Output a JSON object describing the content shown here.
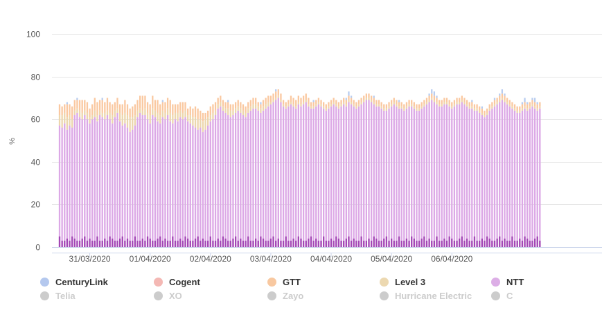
{
  "chart_data": {
    "type": "bar",
    "stacked": true,
    "ylabel": "%",
    "ylim": [
      0,
      100
    ],
    "yticks": [
      0,
      20,
      40,
      60,
      80,
      100
    ],
    "grid": true,
    "x_start": "2020-03-30T12:00",
    "x_step_hours": 1,
    "x_ticks": [
      {
        "label": "31/03/2020",
        "at": "2020-03-31T00:00"
      },
      {
        "label": "01/04/2020",
        "at": "2020-04-01T00:00"
      },
      {
        "label": "02/04/2020",
        "at": "2020-04-02T00:00"
      },
      {
        "label": "03/04/2020",
        "at": "2020-04-03T00:00"
      },
      {
        "label": "04/04/2020",
        "at": "2020-04-04T00:00"
      },
      {
        "label": "05/04/2020",
        "at": "2020-04-05T00:00"
      },
      {
        "label": "06/04/2020",
        "at": "2020-04-06T00:00"
      }
    ],
    "series": [
      {
        "name": "NTT",
        "color": "#dca8e6",
        "strong_color": "#a347b5",
        "values": [
          57,
          56,
          58,
          55,
          57,
          56,
          62,
          63,
          61,
          60,
          62,
          60,
          58,
          60,
          61,
          59,
          62,
          61,
          60,
          62,
          60,
          58,
          61,
          63,
          59,
          57,
          58,
          56,
          54,
          55,
          57,
          61,
          63,
          62,
          62,
          60,
          58,
          62,
          61,
          59,
          58,
          61,
          60,
          62,
          59,
          58,
          60,
          59,
          61,
          60,
          61,
          59,
          58,
          57,
          56,
          55,
          56,
          54,
          55,
          57,
          59,
          60,
          62,
          65,
          66,
          64,
          63,
          62,
          61,
          62,
          63,
          64,
          63,
          62,
          61,
          63,
          64,
          65,
          65,
          64,
          63,
          64,
          65,
          66,
          67,
          68,
          69,
          70,
          68,
          66,
          65,
          66,
          67,
          66,
          65,
          67,
          66,
          67,
          68,
          66,
          65,
          65,
          66,
          67,
          66,
          65,
          64,
          65,
          66,
          67,
          66,
          65,
          66,
          67,
          66,
          68,
          67,
          66,
          65,
          66,
          67,
          68,
          69,
          69,
          68,
          67,
          66,
          66,
          65,
          64,
          64,
          65,
          66,
          67,
          66,
          65,
          65,
          64,
          65,
          66,
          66,
          65,
          64,
          64,
          65,
          66,
          67,
          68,
          69,
          68,
          67,
          66,
          66,
          67,
          67,
          66,
          65,
          66,
          67,
          67,
          68,
          67,
          66,
          65,
          65,
          64,
          64,
          63,
          62,
          61,
          62,
          64,
          65,
          66,
          67,
          68,
          69,
          68,
          67,
          66,
          65,
          64,
          63,
          63,
          64,
          65,
          64,
          65,
          66,
          65,
          64,
          65
        ]
      },
      {
        "name": "Level 3",
        "color": "#ecd6ac",
        "values": [
          5,
          6,
          5,
          6,
          5,
          4,
          2,
          2,
          3,
          3,
          2,
          3,
          3,
          2,
          3,
          3,
          2,
          2,
          3,
          2,
          3,
          4,
          3,
          2,
          4,
          5,
          5,
          6,
          7,
          6,
          5,
          3,
          2,
          2,
          3,
          3,
          4,
          3,
          3,
          4,
          4,
          3,
          3,
          3,
          4,
          4,
          3,
          4,
          3,
          3,
          3,
          3,
          4,
          4,
          5,
          5,
          4,
          5,
          5,
          4,
          3,
          3,
          2,
          2,
          2,
          2,
          2,
          3,
          3,
          2,
          2,
          2,
          2,
          2,
          2,
          2,
          2,
          2,
          2,
          2,
          2,
          2,
          2,
          2,
          1,
          1,
          1,
          1,
          1,
          1,
          1,
          1,
          1,
          1,
          1,
          1,
          1,
          1,
          1,
          1,
          1,
          1,
          1,
          1,
          1,
          1,
          1,
          1,
          1,
          1,
          1,
          1,
          1,
          1,
          1,
          1,
          1,
          1,
          1,
          1,
          1,
          1,
          1,
          1,
          1,
          1,
          1,
          1,
          1,
          1,
          1,
          1,
          1,
          1,
          1,
          1,
          1,
          1,
          1,
          1,
          1,
          1,
          1,
          1,
          1,
          1,
          1,
          1,
          1,
          1,
          1,
          1,
          1,
          1,
          1,
          1,
          1,
          1,
          1,
          1,
          1,
          1,
          1,
          1,
          1,
          1,
          1,
          1,
          1,
          1,
          1,
          1,
          1,
          1,
          1,
          1,
          1,
          1,
          1,
          1,
          1,
          1,
          1,
          1,
          1,
          1,
          1,
          1,
          1,
          1,
          1,
          1
        ]
      },
      {
        "name": "GTT",
        "color": "#fac8a0",
        "values": [
          5,
          4,
          4,
          6,
          5,
          6,
          5,
          4,
          5,
          6,
          5,
          5,
          4,
          5,
          6,
          6,
          5,
          6,
          5,
          6,
          5,
          5,
          4,
          5,
          4,
          5,
          6,
          5,
          4,
          5,
          5,
          5,
          6,
          7,
          6,
          5,
          5,
          6,
          5,
          6,
          5,
          4,
          5,
          5,
          6,
          5,
          4,
          4,
          4,
          5,
          4,
          3,
          4,
          4,
          5,
          5,
          4,
          4,
          3,
          3,
          4,
          4,
          4,
          3,
          3,
          3,
          3,
          3,
          3,
          3,
          3,
          3,
          3,
          3,
          3,
          3,
          3,
          3,
          3,
          2,
          2,
          3,
          3,
          3,
          3,
          3,
          3,
          3,
          3,
          2,
          2,
          2,
          3,
          3,
          3,
          3,
          3,
          3,
          3,
          3,
          2,
          2,
          2,
          2,
          2,
          2,
          2,
          2,
          2,
          2,
          2,
          2,
          2,
          2,
          2,
          2,
          2,
          2,
          2,
          2,
          2,
          2,
          2,
          2,
          2,
          2,
          2,
          2,
          2,
          2,
          2,
          2,
          2,
          2,
          2,
          2,
          2,
          2,
          2,
          2,
          2,
          2,
          2,
          2,
          2,
          2,
          2,
          2,
          2,
          2,
          2,
          2,
          2,
          2,
          2,
          2,
          2,
          2,
          2,
          2,
          2,
          2,
          2,
          2,
          2,
          2,
          2,
          2,
          2,
          2,
          2,
          2,
          2,
          2,
          2,
          2,
          2,
          2,
          2,
          2,
          2,
          2,
          2,
          2,
          2,
          2,
          2,
          2,
          2,
          2,
          2,
          2
        ]
      },
      {
        "name": "CenturyLink",
        "color": "#b8cdf0",
        "values": [
          0,
          0,
          0,
          1,
          0,
          0,
          0,
          1,
          0,
          0,
          0,
          0,
          0,
          0,
          0,
          0,
          0,
          1,
          0,
          0,
          0,
          0,
          0,
          0,
          0,
          0,
          0,
          0,
          0,
          0,
          0,
          0,
          0,
          0,
          0,
          0,
          0,
          0,
          0,
          0,
          0,
          1,
          0,
          0,
          0,
          0,
          0,
          0,
          0,
          0,
          0,
          0,
          0,
          0,
          0,
          0,
          0,
          0,
          0,
          0,
          0,
          0,
          0,
          0,
          0,
          0,
          0,
          1,
          0,
          0,
          0,
          0,
          0,
          0,
          0,
          0,
          0,
          0,
          0,
          0,
          1,
          0,
          0,
          0,
          0,
          0,
          1,
          0,
          0,
          0,
          0,
          0,
          0,
          0,
          0,
          0,
          0,
          0,
          0,
          0,
          0,
          1,
          0,
          0,
          0,
          0,
          0,
          0,
          0,
          0,
          0,
          0,
          0,
          0,
          1,
          2,
          1,
          0,
          0,
          0,
          0,
          0,
          0,
          0,
          0,
          1,
          0,
          0,
          0,
          0,
          0,
          0,
          0,
          0,
          0,
          1,
          0,
          0,
          0,
          0,
          0,
          0,
          0,
          0,
          0,
          0,
          0,
          1,
          2,
          2,
          1,
          0,
          0,
          0,
          0,
          0,
          0,
          0,
          0,
          0,
          0,
          0,
          0,
          0,
          1,
          0,
          0,
          0,
          1,
          0,
          0,
          0,
          0,
          1,
          0,
          1,
          2,
          1,
          0,
          0,
          0,
          0,
          0,
          0,
          1,
          2,
          1,
          0,
          1,
          2,
          1,
          0
        ]
      },
      {
        "name": "Cogent",
        "color": "#f8b4b0",
        "values": []
      },
      {
        "name": "Telia",
        "color": "#cccccc",
        "hidden": true,
        "values": []
      },
      {
        "name": "XO",
        "color": "#cccccc",
        "hidden": true,
        "values": []
      },
      {
        "name": "Zayo",
        "color": "#cccccc",
        "hidden": true,
        "values": []
      },
      {
        "name": "Hurricane Electric",
        "color": "#cccccc",
        "hidden": true,
        "values": []
      },
      {
        "name": "C",
        "color": "#cccccc",
        "hidden": true,
        "values": []
      }
    ]
  },
  "legend": {
    "items": [
      {
        "label": "CenturyLink",
        "color": "#b4c8ee",
        "active": true
      },
      {
        "label": "Cogent",
        "color": "#f4b8b4",
        "active": true
      },
      {
        "label": "GTT",
        "color": "#f8c8a0",
        "active": true
      },
      {
        "label": "Level 3",
        "color": "#ecd8b0",
        "active": true
      },
      {
        "label": "NTT",
        "color": "#dcaee6",
        "active": true
      },
      {
        "label": "Telia",
        "color": "#cccccc",
        "active": false
      },
      {
        "label": "XO",
        "color": "#cccccc",
        "active": false
      },
      {
        "label": "Zayo",
        "color": "#cccccc",
        "active": false
      },
      {
        "label": "Hurricane Electric",
        "color": "#cccccc",
        "active": false
      },
      {
        "label": "C",
        "color": "#cccccc",
        "active": false
      }
    ]
  }
}
